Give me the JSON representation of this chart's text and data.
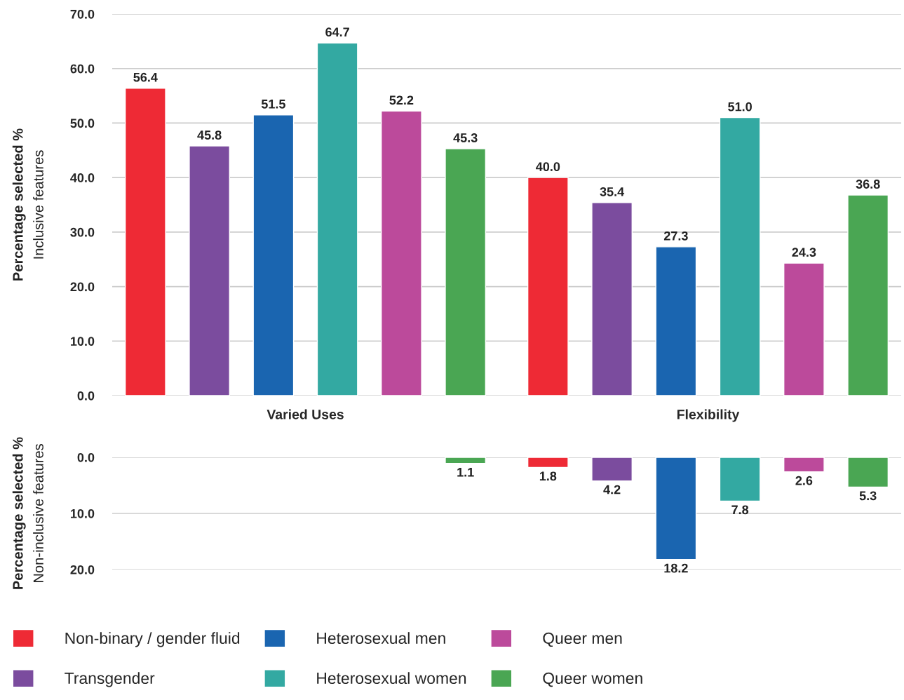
{
  "chart_data": [
    {
      "type": "bar",
      "ylabel": "Percentage selected %\nInclusive features",
      "categories": [
        "Varied Uses",
        "Flexibility"
      ],
      "series": [
        {
          "name": "Non-binary / gender fluid",
          "color": "#ee2a35",
          "values": [
            56.4,
            40.0
          ],
          "value_labels": [
            "56.4",
            "40.0"
          ]
        },
        {
          "name": "Transgender",
          "color": "#7b4c9e",
          "values": [
            45.8,
            35.4
          ],
          "value_labels": [
            "45.8",
            "35.4"
          ]
        },
        {
          "name": "Heterosexual men",
          "color": "#1a65b0",
          "values": [
            51.5,
            27.3
          ],
          "value_labels": [
            "51.5",
            "27.3"
          ]
        },
        {
          "name": "Heterosexual women",
          "color": "#33a9a2",
          "values": [
            64.7,
            51.0
          ],
          "value_labels": [
            "64.7",
            "51.0"
          ]
        },
        {
          "name": "Queer men",
          "color": "#bc4a9b",
          "values": [
            52.2,
            24.3
          ],
          "value_labels": [
            "52.2",
            "24.3"
          ]
        },
        {
          "name": "Queer women",
          "color": "#4aa653",
          "values": [
            45.3,
            36.8
          ],
          "value_labels": [
            "45.3",
            "36.8"
          ]
        }
      ],
      "ylim": [
        0,
        70
      ],
      "yticks": [
        {
          "value": 0,
          "label": "0.0"
        },
        {
          "value": 10,
          "label": "10.0"
        },
        {
          "value": 20,
          "label": "20.0"
        },
        {
          "value": 30,
          "label": "30.0"
        },
        {
          "value": 40,
          "label": "40.0"
        },
        {
          "value": 50,
          "label": "50.0"
        },
        {
          "value": 60,
          "label": "60.0"
        },
        {
          "value": 70,
          "label": "70.0"
        }
      ],
      "grid": "y",
      "legend": "bottom"
    },
    {
      "type": "bar",
      "ylabel": "Percentage selected %\nNon-inclusive features",
      "categories": [
        null,
        null
      ],
      "series": [
        {
          "color": "#ee2a35",
          "values": [
            null,
            1.8
          ],
          "value_labels": [
            null,
            "1.8"
          ]
        },
        {
          "color": "#7b4c9e",
          "values": [
            null,
            4.2
          ],
          "value_labels": [
            null,
            "4.2"
          ]
        },
        {
          "color": "#1a65b0",
          "values": [
            null,
            18.2
          ],
          "value_labels": [
            null,
            "18.2"
          ]
        },
        {
          "color": "#33a9a2",
          "values": [
            null,
            7.8
          ],
          "value_labels": [
            null,
            "7.8"
          ]
        },
        {
          "color": "#bc4a9b",
          "values": [
            null,
            2.6
          ],
          "value_labels": [
            null,
            "2.6"
          ]
        },
        {
          "color": "#4aa653",
          "values": [
            1.1,
            5.3
          ],
          "value_labels": [
            "1.1",
            "5.3"
          ]
        }
      ],
      "ylim": [
        20,
        0
      ],
      "yticks": [
        {
          "value": 0,
          "label": "0.0"
        },
        {
          "value": 10,
          "label": "10.0"
        },
        {
          "value": 20,
          "label": "20.0"
        }
      ],
      "grid": "y"
    }
  ]
}
